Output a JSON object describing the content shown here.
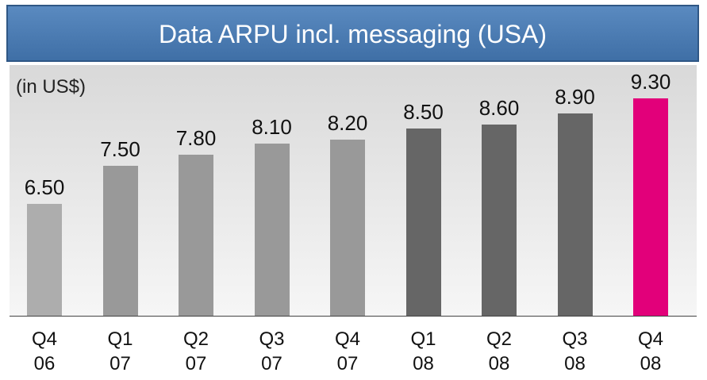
{
  "chart_data": {
    "type": "bar",
    "title": "Data ARPU incl. messaging (USA)",
    "subtitle": "(in US$)",
    "categories": [
      "Q4 06",
      "Q1 07",
      "Q2 07",
      "Q3 07",
      "Q4 07",
      "Q1 08",
      "Q2 08",
      "Q3 08",
      "Q4 08"
    ],
    "values": [
      6.5,
      7.5,
      7.8,
      8.1,
      8.2,
      8.5,
      8.6,
      8.9,
      9.3
    ],
    "value_labels": [
      "6.50",
      "7.50",
      "7.80",
      "8.10",
      "8.20",
      "8.50",
      "8.60",
      "8.90",
      "9.30"
    ],
    "colors": [
      "#adadad",
      "#999999",
      "#999999",
      "#999999",
      "#999999",
      "#666666",
      "#666666",
      "#666666",
      "#e2007a"
    ],
    "ylim": [
      3.5,
      10.2
    ]
  }
}
